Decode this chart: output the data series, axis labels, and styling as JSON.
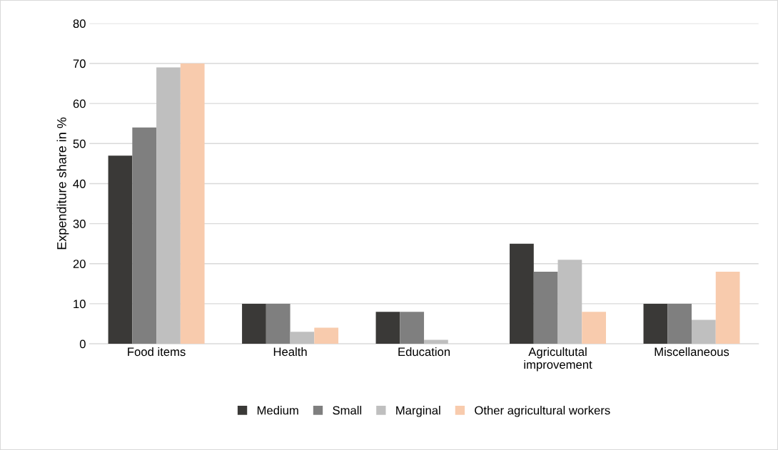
{
  "chart_data": {
    "type": "bar",
    "ylabel": "Expenditure share in %",
    "categories": [
      "Food items",
      "Health",
      "Education",
      "Agricultutal improvement",
      "Miscellaneous"
    ],
    "series": [
      {
        "name": "Medium",
        "color": "#3a3937",
        "values": [
          47,
          10,
          8,
          25,
          10
        ]
      },
      {
        "name": "Small",
        "color": "#7f7f7f",
        "values": [
          54,
          10,
          8,
          18,
          10
        ]
      },
      {
        "name": "Marginal",
        "color": "#bfbfbf",
        "values": [
          69,
          3,
          1,
          21,
          6
        ]
      },
      {
        "name": "Other agricultural workers",
        "color": "#f8cbad",
        "values": [
          70,
          4,
          0,
          8,
          18
        ]
      }
    ],
    "ylim": [
      0,
      80
    ],
    "yticks": [
      0,
      10,
      20,
      30,
      40,
      50,
      60,
      70,
      80
    ],
    "grid": "y",
    "legend": "bottom"
  }
}
